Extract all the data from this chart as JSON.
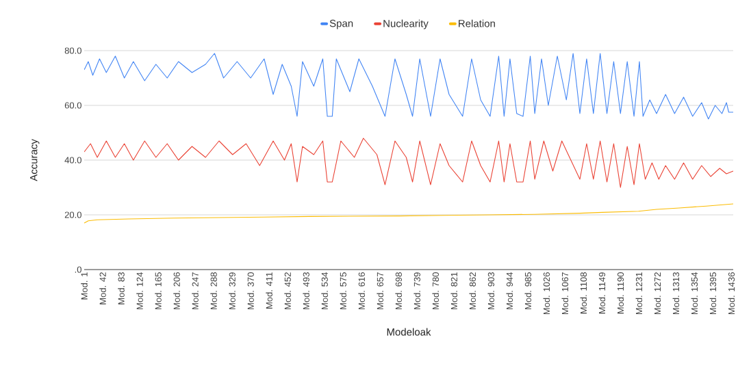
{
  "chart_data": {
    "type": "line",
    "xlabel": "Modeloak",
    "ylabel": "Accuracy",
    "legend": "top",
    "grid": "y",
    "marker": "none",
    "line_style": "solid",
    "xlim": [
      1,
      1440
    ],
    "ylim": [
      0,
      80
    ],
    "yticks": [
      {
        "value": 0,
        "label": ".0"
      },
      {
        "value": 20,
        "label": "20.0"
      },
      {
        "value": 40,
        "label": "40.0"
      },
      {
        "value": 60,
        "label": "60.0"
      },
      {
        "value": 80,
        "label": "80.0"
      }
    ],
    "xticks": [
      {
        "value": 1,
        "label": "Mod. 1"
      },
      {
        "value": 42,
        "label": "Mod. 42"
      },
      {
        "value": 83,
        "label": "Mod. 83"
      },
      {
        "value": 124,
        "label": "Mod. 124"
      },
      {
        "value": 165,
        "label": "Mod. 165"
      },
      {
        "value": 206,
        "label": "Mod. 206"
      },
      {
        "value": 247,
        "label": "Mod. 247"
      },
      {
        "value": 288,
        "label": "Mod. 288"
      },
      {
        "value": 329,
        "label": "Mod. 329"
      },
      {
        "value": 370,
        "label": "Mod. 370"
      },
      {
        "value": 411,
        "label": "Mod. 411"
      },
      {
        "value": 452,
        "label": "Mod. 452"
      },
      {
        "value": 493,
        "label": "Mod. 493"
      },
      {
        "value": 534,
        "label": "Mod. 534"
      },
      {
        "value": 575,
        "label": "Mod. 575"
      },
      {
        "value": 616,
        "label": "Mod. 616"
      },
      {
        "value": 657,
        "label": "Mod. 657"
      },
      {
        "value": 698,
        "label": "Mod. 698"
      },
      {
        "value": 739,
        "label": "Mod. 739"
      },
      {
        "value": 780,
        "label": "Mod. 780"
      },
      {
        "value": 821,
        "label": "Mod. 821"
      },
      {
        "value": 862,
        "label": "Mod. 862"
      },
      {
        "value": 903,
        "label": "Mod. 903"
      },
      {
        "value": 944,
        "label": "Mod. 944"
      },
      {
        "value": 985,
        "label": "Mod. 985"
      },
      {
        "value": 1026,
        "label": "Mod. 1026"
      },
      {
        "value": 1067,
        "label": "Mod. 1067"
      },
      {
        "value": 1108,
        "label": "Mod. 1108"
      },
      {
        "value": 1149,
        "label": "Mod. 1149"
      },
      {
        "value": 1190,
        "label": "Mod. 1190"
      },
      {
        "value": 1231,
        "label": "Mod. 1231"
      },
      {
        "value": 1272,
        "label": "Mod. 1272"
      },
      {
        "value": 1313,
        "label": "Mod. 1313"
      },
      {
        "value": 1354,
        "label": "Mod. 1354"
      },
      {
        "value": 1395,
        "label": "Mod. 1395"
      },
      {
        "value": 1436,
        "label": "Mod. 1436"
      }
    ],
    "series": [
      {
        "name": "Span",
        "color": "#4285f4",
        "x": [
          1,
          10,
          20,
          35,
          50,
          70,
          90,
          110,
          135,
          160,
          185,
          210,
          240,
          270,
          290,
          310,
          340,
          370,
          400,
          420,
          440,
          460,
          473,
          485,
          510,
          530,
          540,
          546,
          551,
          560,
          590,
          610,
          640,
          668,
          690,
          715,
          729,
          745,
          769,
          790,
          810,
          840,
          860,
          880,
          901,
          920,
          932,
          945,
          960,
          974,
          990,
          1000,
          1015,
          1030,
          1050,
          1070,
          1085,
          1100,
          1115,
          1130,
          1145,
          1160,
          1175,
          1190,
          1205,
          1220,
          1232,
          1240,
          1255,
          1270,
          1290,
          1310,
          1330,
          1350,
          1370,
          1385,
          1400,
          1415,
          1425,
          1430,
          1440
        ],
        "values": [
          73,
          76,
          71,
          77,
          72,
          78,
          70,
          76,
          69,
          75,
          70,
          76,
          72,
          75,
          79,
          70,
          76,
          70,
          77,
          64,
          75,
          67,
          56,
          76,
          67,
          77,
          56,
          56,
          56,
          77,
          65,
          77,
          67,
          56,
          77,
          64,
          56,
          77,
          56,
          77,
          64,
          56,
          77,
          62,
          56,
          78,
          56,
          77,
          57,
          56,
          78,
          57,
          77,
          60,
          78,
          62,
          79,
          57,
          77,
          57,
          79,
          57,
          76,
          57,
          76,
          56,
          76,
          56,
          62,
          57,
          64,
          57,
          63,
          56,
          61,
          55,
          60,
          57,
          61,
          57.5,
          57.5
        ]
      },
      {
        "name": "Nuclearity",
        "color": "#ea4335",
        "x": [
          1,
          15,
          30,
          50,
          70,
          90,
          110,
          135,
          160,
          185,
          210,
          240,
          270,
          300,
          330,
          360,
          390,
          420,
          445,
          460,
          473,
          485,
          510,
          530,
          540,
          546,
          551,
          570,
          600,
          620,
          650,
          668,
          690,
          715,
          729,
          745,
          769,
          790,
          810,
          840,
          860,
          880,
          901,
          920,
          932,
          945,
          960,
          974,
          990,
          1000,
          1020,
          1040,
          1060,
          1080,
          1100,
          1115,
          1130,
          1145,
          1160,
          1175,
          1190,
          1205,
          1220,
          1232,
          1245,
          1260,
          1275,
          1290,
          1310,
          1330,
          1350,
          1370,
          1390,
          1410,
          1425,
          1440
        ],
        "values": [
          43,
          46,
          41,
          47,
          41,
          46,
          40,
          47,
          41,
          46,
          40,
          45,
          41,
          47,
          42,
          46,
          38,
          47,
          40,
          46,
          32,
          45,
          42,
          47,
          32,
          32,
          32,
          47,
          41,
          48,
          42,
          31,
          47,
          41,
          32,
          47,
          31,
          46,
          38,
          32,
          47,
          38,
          32,
          47,
          32,
          46,
          32,
          32,
          47,
          33,
          47,
          36,
          47,
          40,
          33,
          46,
          33,
          47,
          32,
          46,
          30,
          45,
          31,
          46,
          33,
          39,
          33,
          38,
          33,
          39,
          33,
          38,
          34,
          37,
          35,
          36
        ]
      },
      {
        "name": "Relation",
        "color": "#fbbc04",
        "x": [
          1,
          10,
          30,
          100,
          200,
          300,
          400,
          500,
          600,
          700,
          800,
          900,
          1000,
          1100,
          1150,
          1230,
          1270,
          1320,
          1380,
          1440
        ],
        "values": [
          17,
          17.8,
          18.2,
          18.5,
          18.8,
          19,
          19.2,
          19.4,
          19.5,
          19.6,
          19.8,
          20,
          20.2,
          20.6,
          20.9,
          21.3,
          22,
          22.5,
          23.2,
          24
        ]
      }
    ]
  }
}
